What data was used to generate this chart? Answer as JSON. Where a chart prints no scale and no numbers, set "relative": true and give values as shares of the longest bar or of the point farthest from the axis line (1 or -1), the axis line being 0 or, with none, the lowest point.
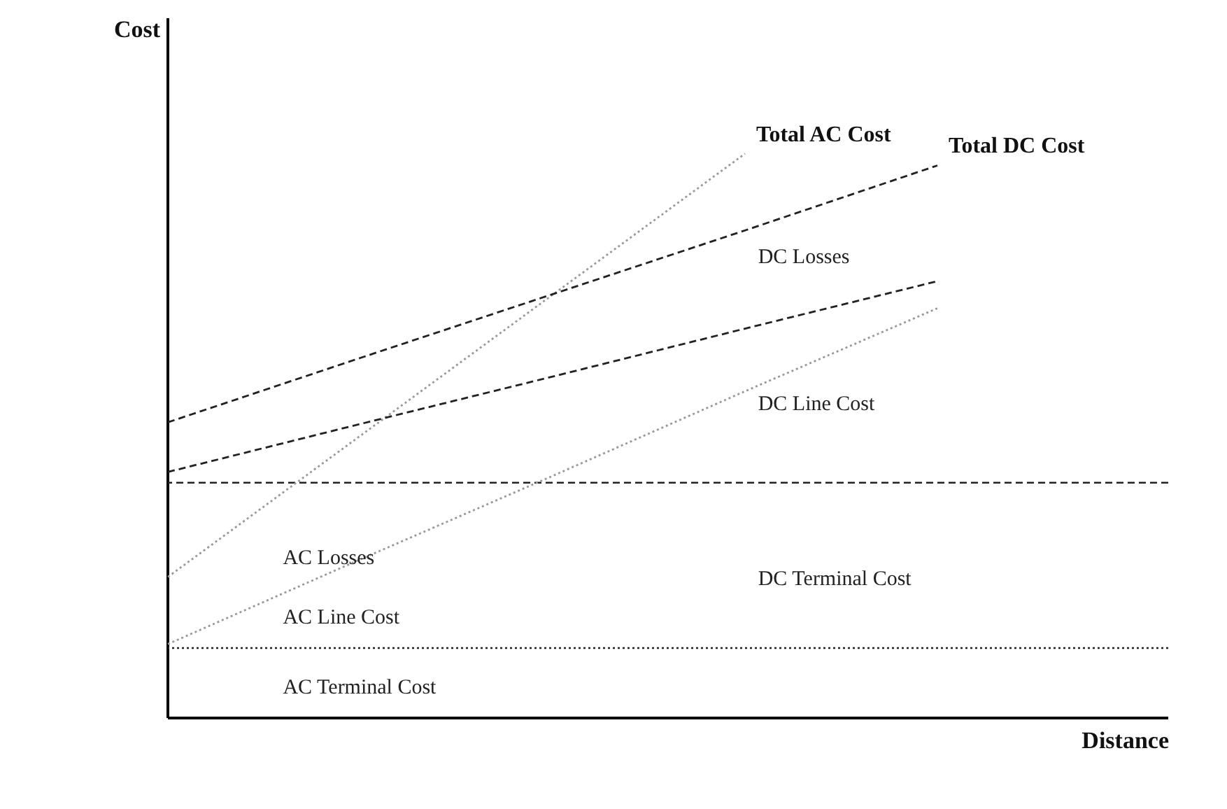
{
  "chart_data": {
    "type": "line",
    "relative": true,
    "xlabel": "Distance",
    "ylabel": "Cost",
    "tick_labels": false,
    "grid": false,
    "legend": false,
    "marker": "none",
    "categories": [
      null,
      null,
      null,
      null,
      null
    ],
    "series": [
      {
        "name": "Total AC Cost",
        "color": "#999999",
        "line_style": "dotted",
        "values": [
          0.25,
          0.5,
          0.75,
          1.0,
          null
        ]
      },
      {
        "name": "Total DC Cost",
        "color": "#222222",
        "line_style": "dashed",
        "values": [
          0.524,
          0.638,
          0.751,
          0.864,
          0.979
        ]
      },
      {
        "color": "#222222",
        "line_style": "dashed",
        "values": [
          0.436,
          0.521,
          0.605,
          0.69,
          0.774
        ]
      },
      {
        "color": "#999999",
        "line_style": "dotted",
        "values": [
          0.131,
          0.281,
          0.429,
          0.579,
          0.726
        ]
      }
    ],
    "ref_lines": [
      {
        "axis": "y",
        "value": 0.417,
        "color": "#222222",
        "line_style": "dashed"
      },
      {
        "axis": "y",
        "value": 0.124,
        "color": "#222222",
        "line_style": "dotted"
      }
    ],
    "annotations": [
      "DC Losses",
      "DC Line Cost",
      "DC Terminal Cost",
      "AC Losses",
      "AC Line Cost",
      "AC Terminal Cost"
    ]
  }
}
